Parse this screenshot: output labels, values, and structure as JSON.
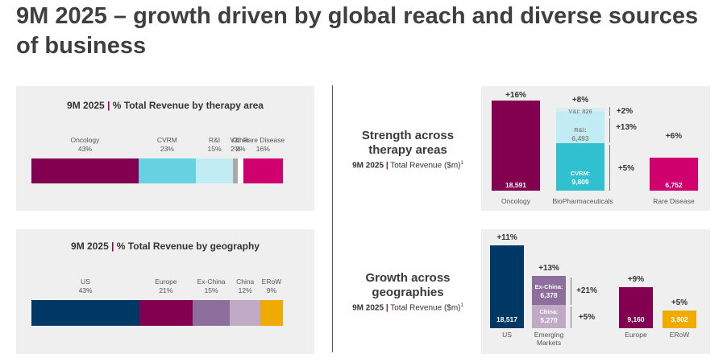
{
  "title": "9M 2025 – growth driven by global reach and diverse sources of business",
  "panel_therapy": {
    "title_bold": "9M 2025",
    "title_rest": "% Total Revenue by therapy area",
    "segments": [
      {
        "name": "Oncology",
        "pct_label": "43%",
        "value": 43,
        "color": "#830051"
      },
      {
        "name": "CVRM",
        "pct_label": "23%",
        "value": 23,
        "color": "#66d1e0"
      },
      {
        "name": "R&I",
        "pct_label": "15%",
        "value": 15,
        "color": "#c2ecf3"
      },
      {
        "name": "V&I",
        "pct_label": "2%",
        "value": 2,
        "color": "#a9a9a9"
      },
      {
        "name": "Other",
        "pct_label": "2%",
        "value": 2,
        "color": "#ffffff"
      },
      {
        "name": "Rare Disease",
        "pct_label": "16%",
        "value": 16,
        "color": "#d0006f"
      }
    ]
  },
  "panel_geo": {
    "title_bold": "9M 2025",
    "title_rest": "% Total Revenue by geography",
    "segments": [
      {
        "name": "US",
        "pct_label": "43%",
        "value": 43,
        "color": "#003865"
      },
      {
        "name": "Europe",
        "pct_label": "21%",
        "value": 21,
        "color": "#830051"
      },
      {
        "name": "Ex-China",
        "pct_label": "15%",
        "value": 15,
        "color": "#8d6e9d"
      },
      {
        "name": "China",
        "pct_label": "12%",
        "value": 12,
        "color": "#c0aac6"
      },
      {
        "name": "ERoW",
        "pct_label": "9%",
        "value": 9,
        "color": "#f0ab00"
      }
    ]
  },
  "therapy_section": {
    "heading_line1": "Strength across",
    "heading_line2": "therapy areas",
    "sub_bold": "9M 2025",
    "sub_rest": "Total Revenue ($m)",
    "sup": "1"
  },
  "geo_section": {
    "heading_line1": "Growth across",
    "heading_line2": "geographies",
    "sub_bold": "9M 2025",
    "sub_rest": "Total Revenue ($m)",
    "sup": "1"
  },
  "chart_data": [
    {
      "type": "bar",
      "title": "% Total Revenue by therapy area",
      "stacked": true,
      "orientation": "horizontal",
      "series": [
        {
          "name": "Oncology",
          "values": [
            43
          ]
        },
        {
          "name": "CVRM",
          "values": [
            23
          ]
        },
        {
          "name": "R&I",
          "values": [
            15
          ]
        },
        {
          "name": "V&I",
          "values": [
            2
          ]
        },
        {
          "name": "Other",
          "values": [
            2
          ]
        },
        {
          "name": "Rare Disease",
          "values": [
            16
          ]
        }
      ]
    },
    {
      "type": "bar",
      "title": "% Total Revenue by geography",
      "stacked": true,
      "orientation": "horizontal",
      "series": [
        {
          "name": "US",
          "values": [
            43
          ]
        },
        {
          "name": "Europe",
          "values": [
            21
          ]
        },
        {
          "name": "Ex-China",
          "values": [
            15
          ]
        },
        {
          "name": "China",
          "values": [
            12
          ]
        },
        {
          "name": "ERoW",
          "values": [
            9
          ]
        }
      ]
    },
    {
      "type": "bar",
      "title": "Total Revenue ($m)",
      "categories": [
        "Oncology",
        "BioPharmaceuticals",
        "Rare Disease"
      ],
      "bars": [
        {
          "category": "Oncology",
          "growth": "+16%",
          "stack": [
            {
              "name": "",
              "value": 18591,
              "label": "18,591",
              "color": "#830051"
            }
          ]
        },
        {
          "category": "BioPharmaceuticals",
          "growth": "+8%",
          "stack": [
            {
              "name": "CVRM",
              "value": 9809,
              "label": "9,809",
              "color": "#2fc1cf"
            },
            {
              "name": "R&I",
              "value": 6493,
              "label": "6,493",
              "color": "#c2ecf3"
            },
            {
              "name": "V&I",
              "value": 826,
              "label": "826",
              "color": "#d7eef2"
            }
          ],
          "segment_growth": [
            {
              "name": "CVRM",
              "growth": "+5%"
            },
            {
              "name": "R&I",
              "growth": "+13%"
            },
            {
              "name": "V&I",
              "growth": "+2%"
            }
          ]
        },
        {
          "category": "Rare Disease",
          "growth": "+6%",
          "stack": [
            {
              "name": "",
              "value": 6752,
              "label": "6,752",
              "color": "#d0006f"
            }
          ]
        }
      ]
    },
    {
      "type": "bar",
      "title": "Total Revenue ($m)",
      "categories": [
        "US",
        "Emerging Markets",
        "Europe",
        "ERoW"
      ],
      "bars": [
        {
          "category": "US",
          "growth": "+11%",
          "stack": [
            {
              "name": "",
              "value": 18517,
              "label": "18,517",
              "color": "#003865"
            }
          ]
        },
        {
          "category": "Emerging Markets",
          "growth": "+13%",
          "stack": [
            {
              "name": "China",
              "value": 5279,
              "label": "5,279",
              "color": "#c0aac6"
            },
            {
              "name": "Ex-China",
              "value": 6378,
              "label": "6,378",
              "color": "#8d6e9d"
            }
          ],
          "segment_growth": [
            {
              "name": "China",
              "growth": "+5%"
            },
            {
              "name": "Ex-China",
              "growth": "+21%"
            }
          ]
        },
        {
          "category": "Europe",
          "growth": "+9%",
          "stack": [
            {
              "name": "",
              "value": 9160,
              "label": "9,160",
              "color": "#830051"
            }
          ]
        },
        {
          "category": "ERoW",
          "growth": "+5%",
          "stack": [
            {
              "name": "",
              "value": 3902,
              "label": "3,902",
              "color": "#f0ab00"
            }
          ]
        }
      ]
    }
  ],
  "labels": {
    "cvrm_inbar": "CVRM:",
    "ri_inbar": "R&I:",
    "vi_inbar": "V&I: 826",
    "exchina_inbar": "Ex-China:",
    "china_inbar": "China:",
    "emerging_line1": "Emerging",
    "emerging_line2": "Markets"
  }
}
